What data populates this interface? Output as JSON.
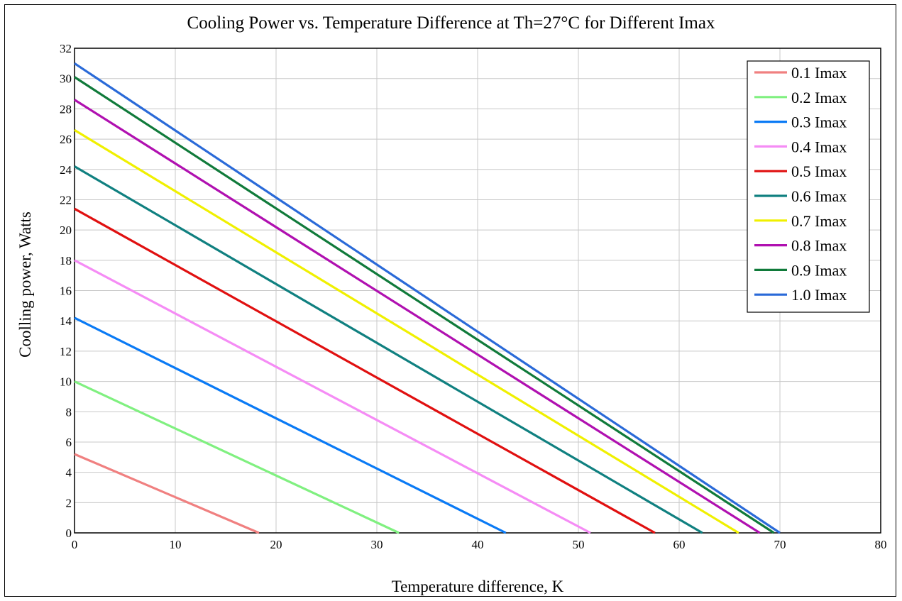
{
  "chart_data": {
    "type": "line",
    "title": "Cooling Power vs. Temperature Difference at Th=27°C for Different Imax",
    "xlabel": "Temperature difference, K",
    "ylabel": "Coolling power, Watts",
    "xlim": [
      0,
      80
    ],
    "ylim": [
      0,
      32
    ],
    "xticks": [
      "0",
      "10",
      "20",
      "30",
      "40",
      "50",
      "60",
      "70",
      "80"
    ],
    "yticks": [
      "0",
      "2",
      "4",
      "6",
      "8",
      "10",
      "12",
      "14",
      "16",
      "18",
      "20",
      "22",
      "24",
      "26",
      "28",
      "30",
      "32"
    ],
    "grid": true,
    "legend_position": "top-right",
    "series": [
      {
        "name": "0.1 Imax",
        "color": "#f08080",
        "x": [
          0,
          18.3
        ],
        "y": [
          5.2,
          0
        ]
      },
      {
        "name": "0.2 Imax",
        "color": "#80f080",
        "x": [
          0,
          32.2
        ],
        "y": [
          10.0,
          0
        ]
      },
      {
        "name": "0.3 Imax",
        "color": "#0a7af5",
        "x": [
          0,
          42.8
        ],
        "y": [
          14.2,
          0
        ]
      },
      {
        "name": "0.4 Imax",
        "color": "#f58cf5",
        "x": [
          0,
          51.2
        ],
        "y": [
          18.0,
          0
        ]
      },
      {
        "name": "0.5 Imax",
        "color": "#e01010",
        "x": [
          0,
          57.6
        ],
        "y": [
          21.4,
          0
        ]
      },
      {
        "name": "0.6 Imax",
        "color": "#108080",
        "x": [
          0,
          62.3
        ],
        "y": [
          24.2,
          0
        ]
      },
      {
        "name": "0.7 Imax",
        "color": "#f0f000",
        "x": [
          0,
          65.9
        ],
        "y": [
          26.6,
          0
        ]
      },
      {
        "name": "0.8 Imax",
        "color": "#b010b0",
        "x": [
          0,
          68.0
        ],
        "y": [
          28.6,
          0
        ]
      },
      {
        "name": "0.9 Imax",
        "color": "#107a3a",
        "x": [
          0,
          69.4
        ],
        "y": [
          30.1,
          0
        ]
      },
      {
        "name": "1.0 Imax",
        "color": "#2a6ad8",
        "x": [
          0,
          70.0
        ],
        "y": [
          31.0,
          0
        ]
      }
    ]
  }
}
